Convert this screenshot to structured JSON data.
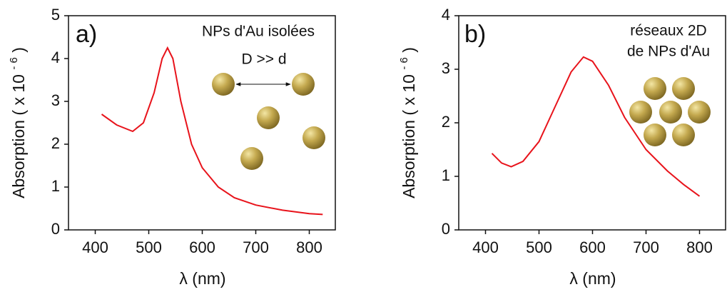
{
  "chart_data": [
    {
      "type": "line",
      "panel": "a)",
      "annotations": [
        "NPs d'Au isolées",
        "D >> d"
      ],
      "x_label": "λ (nm)",
      "y_label": "Absorption ( x 10",
      "y_label_exponent": "- 6",
      "y_label_end": ")",
      "x": [
        412,
        440,
        470,
        490,
        510,
        525,
        535,
        545,
        560,
        580,
        600,
        630,
        660,
        700,
        750,
        800,
        825
      ],
      "values": [
        2.7,
        2.45,
        2.3,
        2.5,
        3.2,
        4.0,
        4.25,
        4.0,
        3.0,
        2.0,
        1.45,
        1.0,
        0.75,
        0.58,
        0.46,
        0.38,
        0.36
      ],
      "color": "#e8131b",
      "xlim": [
        350,
        850
      ],
      "xticks": [
        400,
        500,
        600,
        700,
        800
      ],
      "ylim": [
        0,
        5
      ],
      "yticks": [
        0,
        1,
        2,
        3,
        4,
        5
      ]
    },
    {
      "type": "line",
      "panel": "b)",
      "annotations": [
        "réseaux 2D",
        "de NPs d'Au"
      ],
      "x_label": "λ (nm)",
      "y_label": "Absorption ( x 10",
      "y_label_exponent": "- 6",
      "y_label_end": ")",
      "x": [
        412,
        430,
        448,
        470,
        500,
        530,
        560,
        583,
        600,
        630,
        660,
        700,
        740,
        770,
        800
      ],
      "values": [
        1.43,
        1.25,
        1.18,
        1.28,
        1.65,
        2.3,
        2.95,
        3.23,
        3.15,
        2.7,
        2.1,
        1.5,
        1.1,
        0.85,
        0.63
      ],
      "color": "#e8131b",
      "xlim": [
        350,
        850
      ],
      "xticks": [
        400,
        500,
        600,
        700,
        800
      ],
      "ylim": [
        0,
        4
      ],
      "yticks": [
        0,
        1,
        2,
        3,
        4
      ]
    }
  ]
}
